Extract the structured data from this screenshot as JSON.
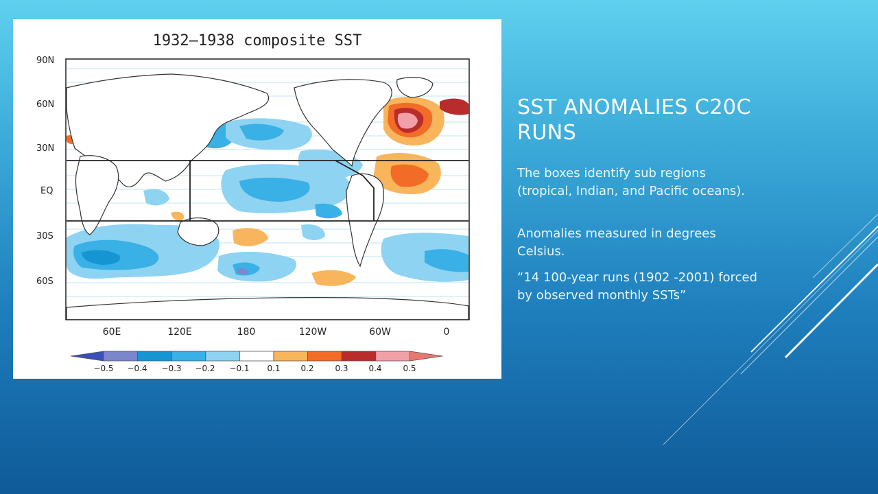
{
  "slide": {
    "title": "SST anomalies C20C runs",
    "paragraphs": [
      "The boxes identify sub regions (tropical, Indian, and Pacific oceans).",
      "Anomalies measured in degrees Celsius.",
      "“14 100-year runs (1902 -2001) forced by observed monthly SSTs”"
    ]
  },
  "figure": {
    "title": "1932–1938 composite SST",
    "lat_labels": [
      "90N",
      "60N",
      "30N",
      "EQ",
      "30S",
      "60S"
    ],
    "lon_labels": [
      "60E",
      "120E",
      "180",
      "120W",
      "60W",
      "0"
    ],
    "colorbar": {
      "ticks": [
        "−0.5",
        "−0.4",
        "−0.3",
        "−0.2",
        "−0.1",
        "0.1",
        "0.2",
        "0.3",
        "0.4",
        "0.5"
      ],
      "colors": [
        "#3b4fb8",
        "#7b86cc",
        "#1595d2",
        "#39b0e6",
        "#8ed3f2",
        "#ffffff",
        "#f8b55c",
        "#f26c28",
        "#b82c2c",
        "#f2a0a8",
        "#e8786e"
      ]
    }
  }
}
